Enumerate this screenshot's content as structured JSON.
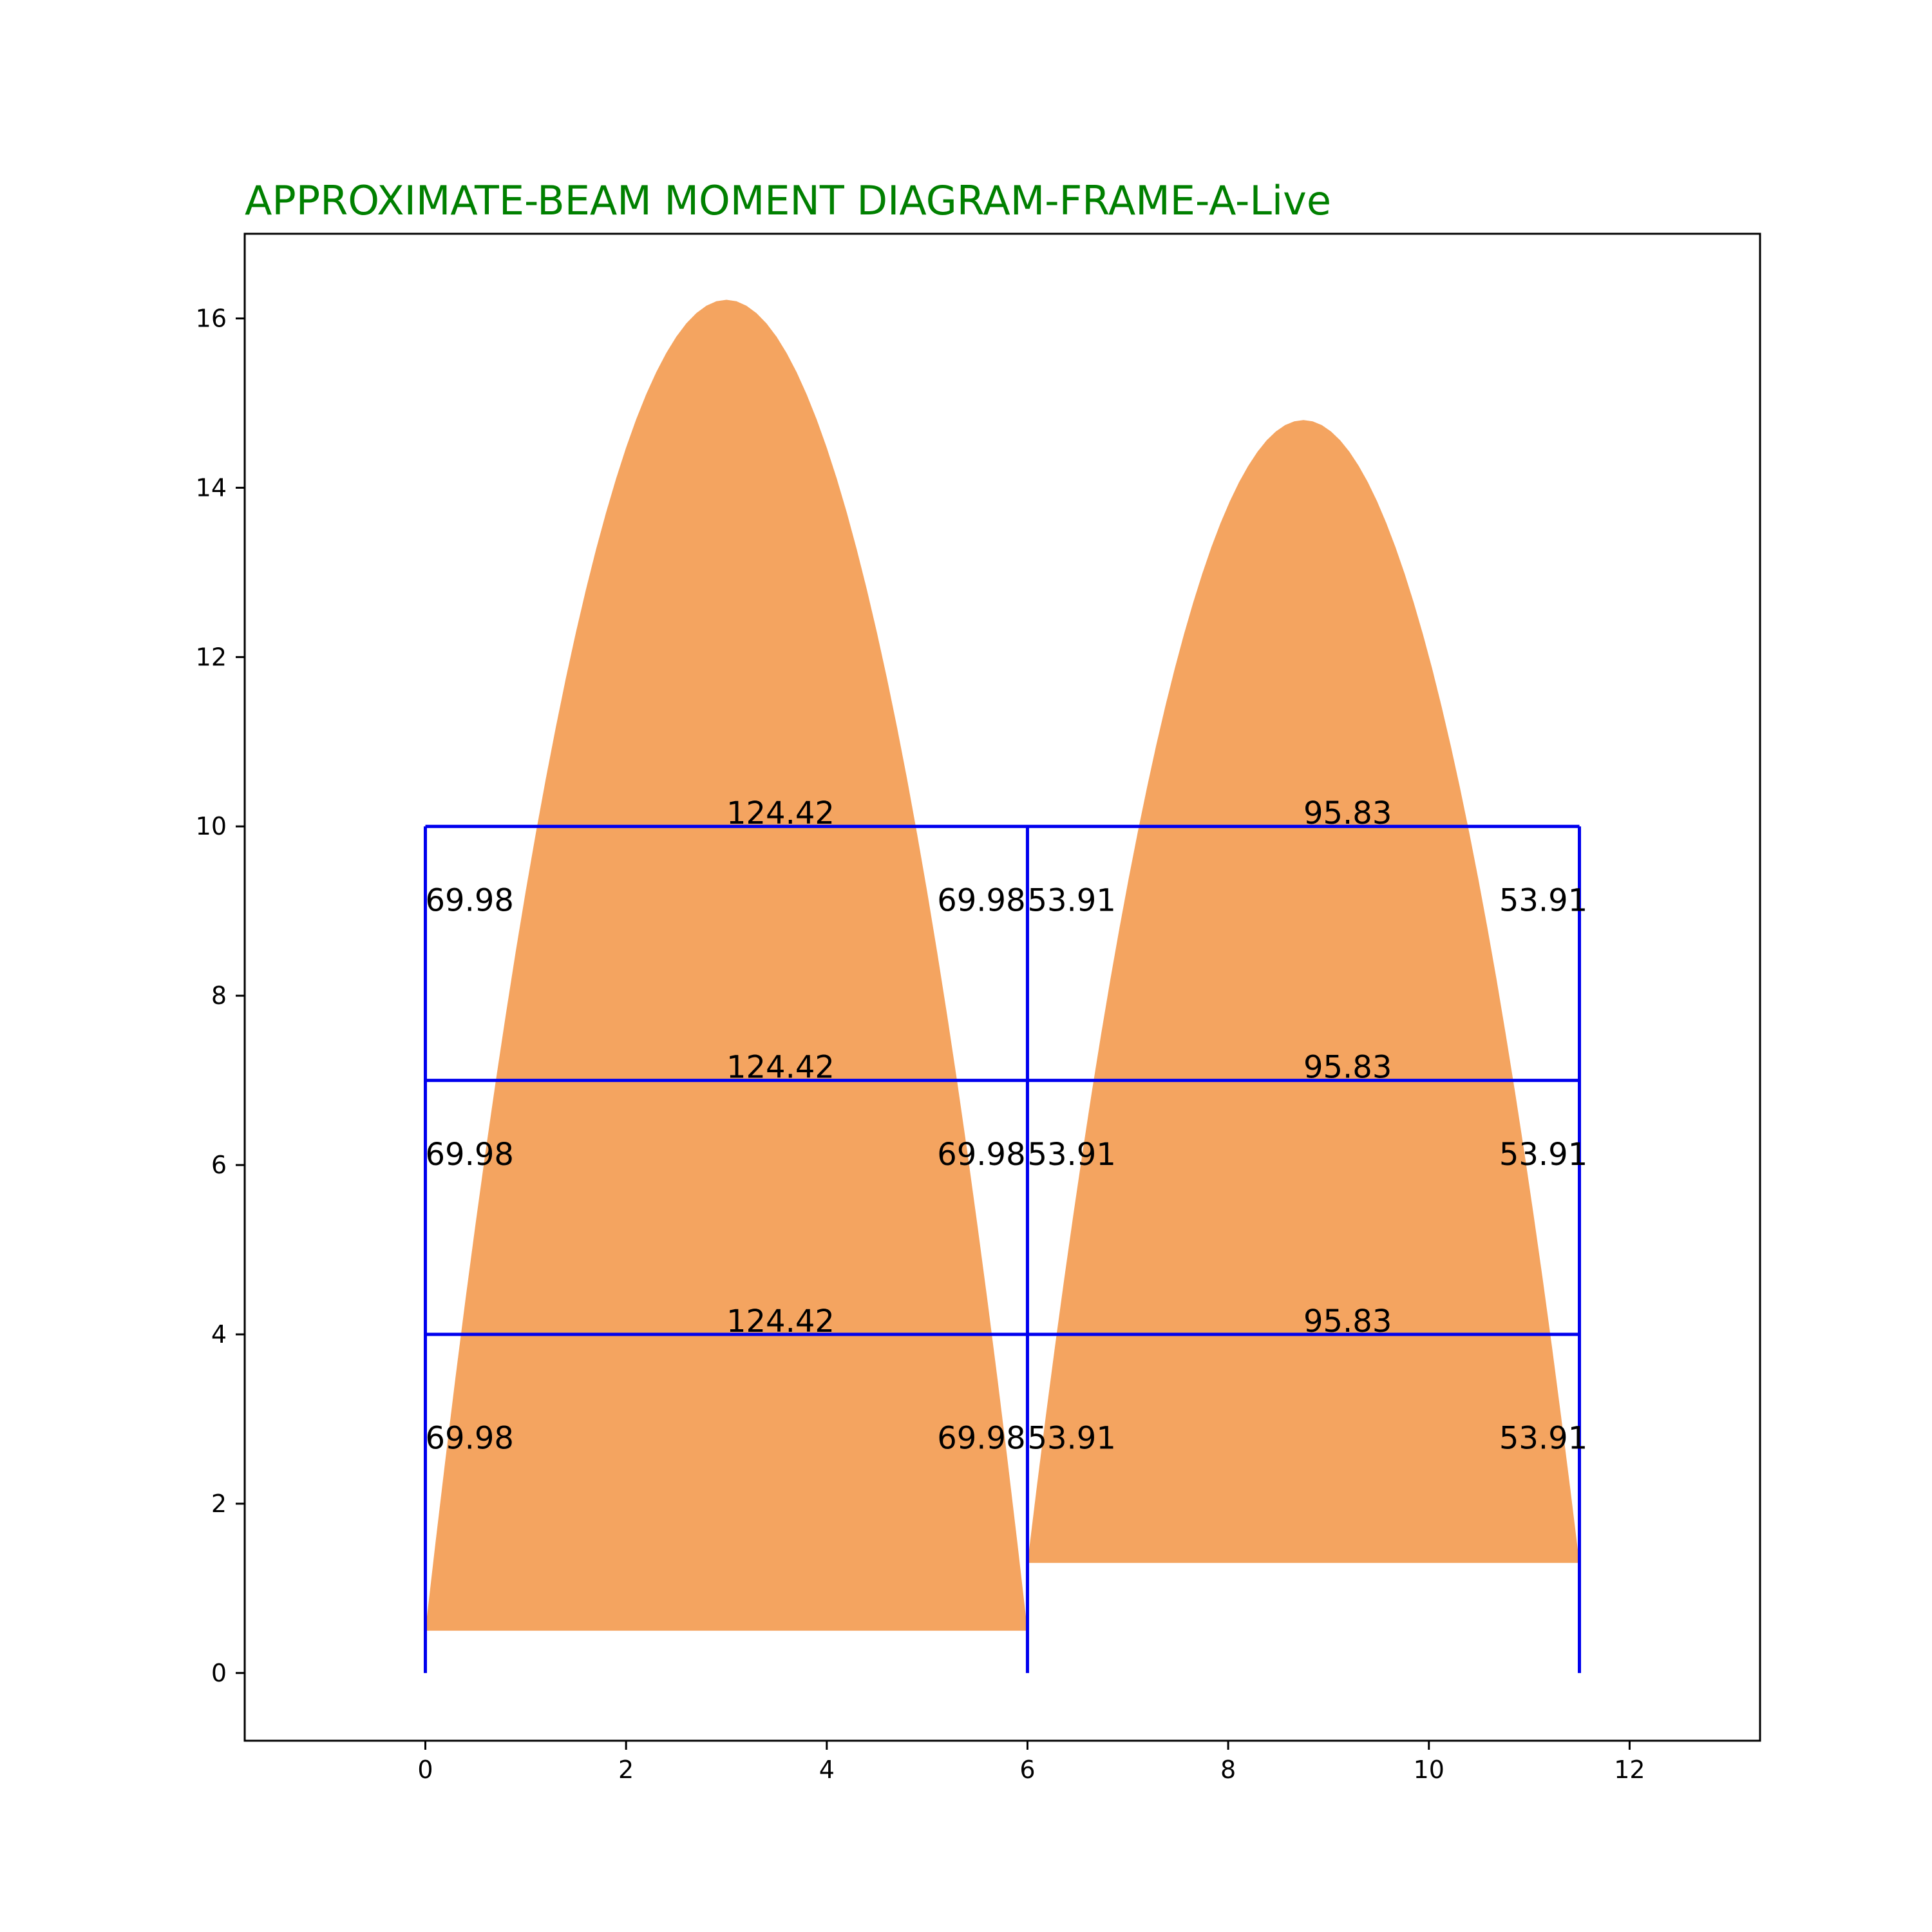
{
  "chart_data": {
    "type": "area",
    "title": "APPROXIMATE-BEAM MOMENT DIAGRAM-FRAME-A-Live",
    "xlabel": "",
    "ylabel": "",
    "xlim": [
      -1.8,
      13.3
    ],
    "ylim": [
      -0.8,
      17.0
    ],
    "xticks": [
      0,
      2,
      4,
      6,
      8,
      10,
      12
    ],
    "yticks": [
      0,
      2,
      4,
      6,
      8,
      10,
      12,
      14,
      16
    ],
    "grid": false,
    "colors": {
      "fill": "#f4a460",
      "frame": "#0000ee",
      "title": "#008000",
      "text": "#000000"
    },
    "frame": {
      "column_x": [
        0,
        6,
        11.5
      ],
      "floor_y": [
        0,
        4,
        7,
        10
      ]
    },
    "moment_curves": [
      {
        "span": [
          0,
          6
        ],
        "base": [
          0.5,
          0.5
        ],
        "peak": 16.22
      },
      {
        "span": [
          6,
          11.5
        ],
        "base": [
          1.3,
          1.3
        ],
        "peak": 14.8
      }
    ],
    "midspan_labels": [
      {
        "text": "124.42",
        "x": 3.0,
        "y": 10
      },
      {
        "text": "95.83",
        "x": 8.75,
        "y": 10
      },
      {
        "text": "124.42",
        "x": 3.0,
        "y": 7
      },
      {
        "text": "95.83",
        "x": 8.75,
        "y": 7
      },
      {
        "text": "124.42",
        "x": 3.0,
        "y": 4
      },
      {
        "text": "95.83",
        "x": 8.75,
        "y": 4
      }
    ],
    "end_labels": [
      {
        "text": "69.98",
        "x": 0.0,
        "y": 9.0
      },
      {
        "text": "69.98",
        "x": 5.1,
        "y": 9.0
      },
      {
        "text": "53.91",
        "x": 6.0,
        "y": 9.0
      },
      {
        "text": "53.91",
        "x": 10.7,
        "y": 9.0
      },
      {
        "text": "69.98",
        "x": 0.0,
        "y": 6.0
      },
      {
        "text": "69.98",
        "x": 5.1,
        "y": 6.0
      },
      {
        "text": "53.91",
        "x": 6.0,
        "y": 6.0
      },
      {
        "text": "53.91",
        "x": 10.7,
        "y": 6.0
      },
      {
        "text": "69.98",
        "x": 0.0,
        "y": 2.65
      },
      {
        "text": "69.98",
        "x": 5.1,
        "y": 2.65
      },
      {
        "text": "53.91",
        "x": 6.0,
        "y": 2.65
      },
      {
        "text": "53.91",
        "x": 10.7,
        "y": 2.65
      }
    ]
  }
}
